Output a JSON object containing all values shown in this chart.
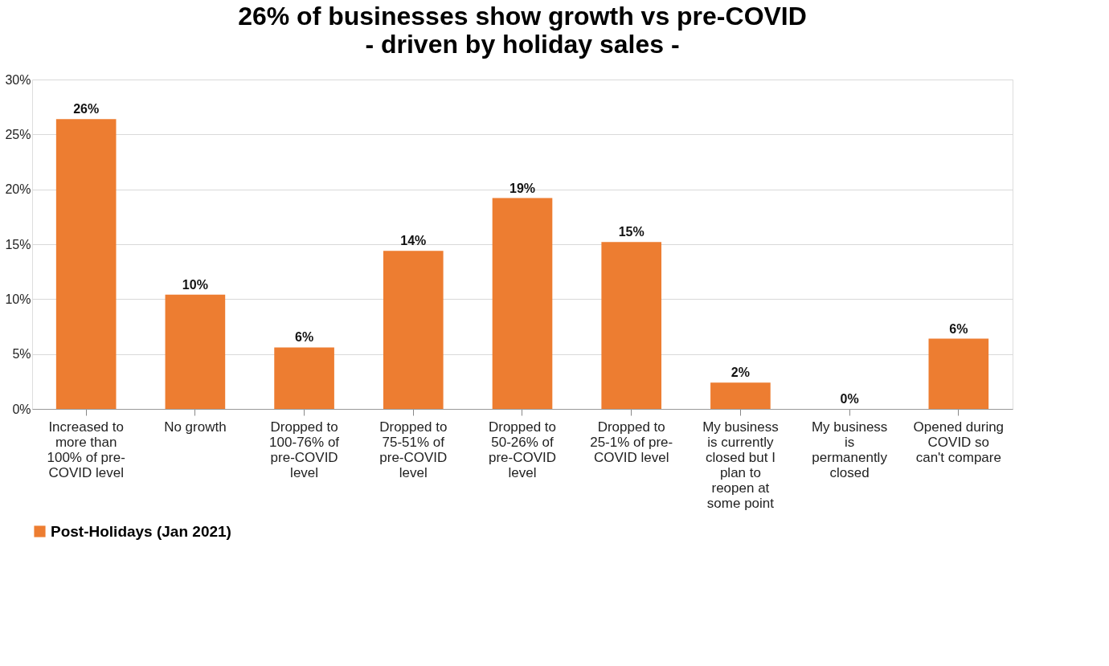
{
  "chart_data": {
    "type": "bar",
    "title": "26% of businesses show growth vs pre-COVID",
    "subtitle": "- driven by holiday sales -",
    "categories": [
      "Increased to more than 100% of pre-COVID level",
      "No growth",
      "Dropped to 100-76% of pre-COVID level",
      "Dropped to 75-51% of pre-COVID level",
      "Dropped to 50-26% of pre-COVID level",
      "Dropped to 25-1% of pre-COVID level",
      "My business is currently closed but I plan to reopen at some point",
      "My business is permanently closed",
      "Opened during COVID so can't compare"
    ],
    "series": [
      {
        "name": "Post-Holidays (Jan 2021)",
        "color": "#ed7d31",
        "values": [
          26.4,
          10.4,
          5.6,
          14.4,
          19.2,
          15.2,
          2.4,
          0,
          6.4
        ],
        "value_labels": [
          "26%",
          "10%",
          "6%",
          "14%",
          "19%",
          "15%",
          "2%",
          "0%",
          "6%"
        ]
      }
    ],
    "ylim": [
      0,
      30
    ],
    "yticks": [
      {
        "value": 0,
        "label": "0%"
      },
      {
        "value": 5,
        "label": "5%"
      },
      {
        "value": 10,
        "label": "10%"
      },
      {
        "value": 15,
        "label": "15%"
      },
      {
        "value": 20,
        "label": "20%"
      },
      {
        "value": 25,
        "label": "25%"
      },
      {
        "value": 30,
        "label": "30%"
      }
    ],
    "grid": "y",
    "legend": "bottom"
  }
}
